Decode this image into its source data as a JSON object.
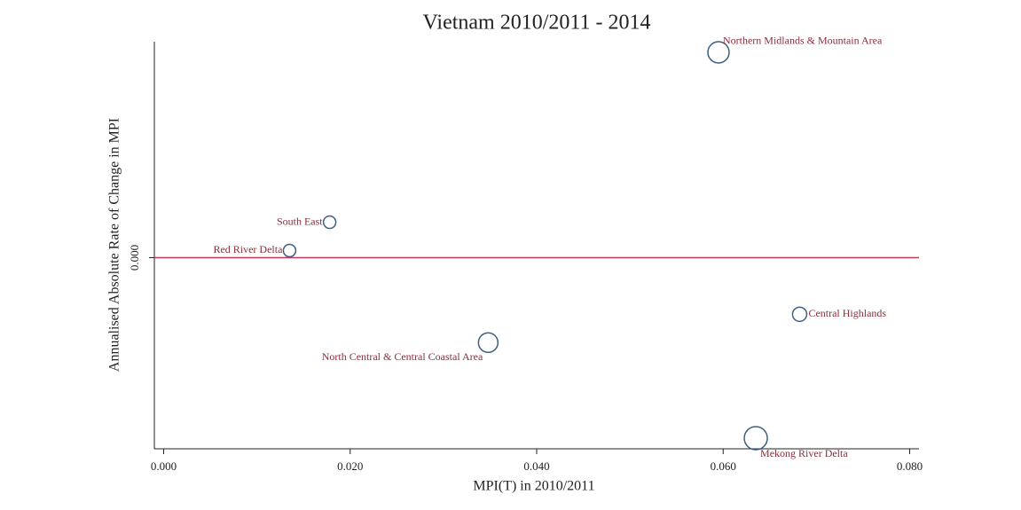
{
  "chart_data": {
    "type": "scatter",
    "title": "Vietnam 2010/2011 - 2014",
    "xlabel": "MPI(T) in 2010/2011",
    "ylabel": "Annualised Absolute Rate of Change in MPI",
    "point_labels": [
      "Northern Midlands & Mountain Area",
      "South East",
      "Red River Delta",
      "Central Highlands",
      "North Central & Central Coastal Area",
      "Mekong River Delta"
    ],
    "x": [
      0.0595,
      0.0178,
      0.0135,
      0.0682,
      0.0348,
      0.0635
    ],
    "values": [
      0.0058,
      0.001,
      0.0002,
      -0.0016,
      -0.0024,
      -0.0051
    ],
    "sizes": [
      12,
      7,
      7,
      8,
      11,
      13
    ],
    "color": "#3e5f80",
    "label_color": "#8b2d3a",
    "reference_line": 0,
    "reference_color": "#c0395a",
    "xlim": [
      -0.001,
      0.081
    ],
    "xticks": [
      {
        "value": 0,
        "label": "0.000"
      },
      {
        "value": 0.02,
        "label": "0.020"
      },
      {
        "value": 0.04,
        "label": "0.040"
      },
      {
        "value": 0.06,
        "label": "0.060"
      },
      {
        "value": 0.08,
        "label": "0.080"
      }
    ],
    "ylim": [
      -0.0054,
      0.0061
    ],
    "yticks": [
      {
        "value": 0,
        "label": "0.000"
      }
    ]
  }
}
